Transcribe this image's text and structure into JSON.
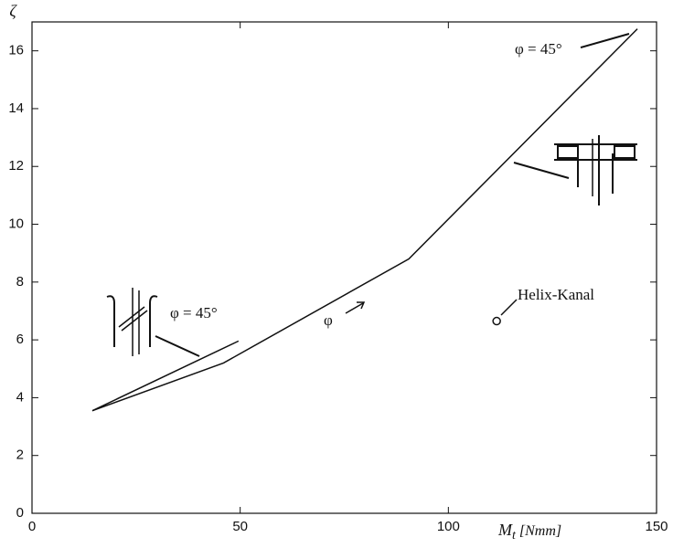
{
  "chart_data": {
    "type": "line",
    "xlabel": {
      "symbol": "M",
      "subscript": "t",
      "unit": "[Nmm]"
    },
    "ylabel": "ζ",
    "xlim": [
      0,
      150
    ],
    "ylim": [
      0,
      17
    ],
    "xticks": [
      0,
      50,
      100,
      150
    ],
    "yticks": [
      0,
      2,
      4,
      6,
      8,
      10,
      12,
      14,
      16
    ],
    "series": [
      {
        "color": "#111111",
        "x": [
          14.5,
          46,
          90.5,
          145.4
        ],
        "values": [
          3.55,
          5.2,
          8.8,
          16.76
        ]
      },
      {
        "color": "#111111",
        "x": [
          14.5,
          49.6
        ],
        "values": [
          3.55,
          5.96
        ]
      },
      {
        "color": "#111111",
        "mode": "markers",
        "x": [
          111.6
        ],
        "values": [
          6.65
        ]
      }
    ],
    "annotations": [
      "φ = 45°",
      "φ = 45°",
      "φ",
      "Helix-Kanal"
    ]
  }
}
